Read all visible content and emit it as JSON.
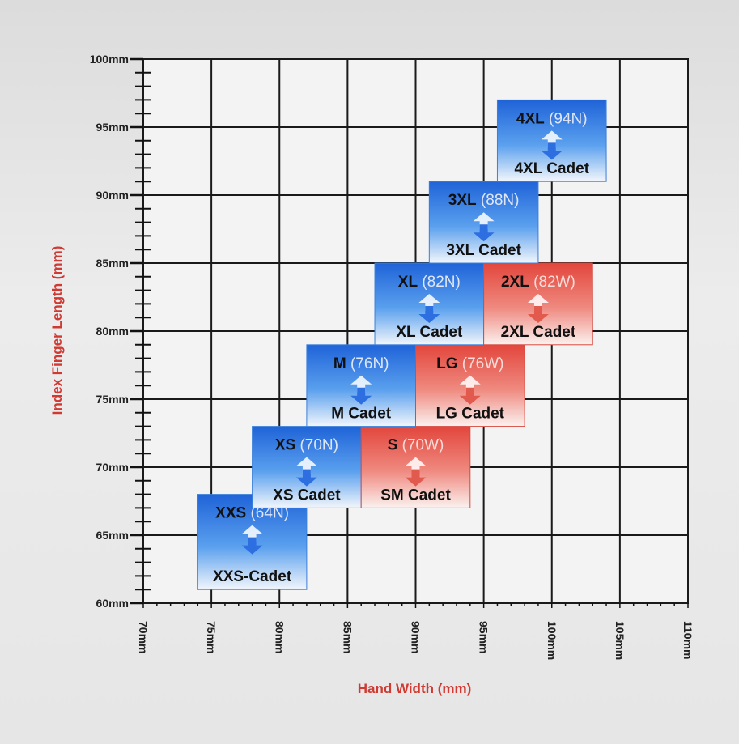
{
  "chart_data": {
    "type": "table",
    "xlabel": "Hand Width (mm)",
    "ylabel": "Index Finger Length (mm)",
    "xlim": [
      70,
      110
    ],
    "ylim": [
      60,
      100
    ],
    "x_ticks": [
      "70mm",
      "75mm",
      "80mm",
      "85mm",
      "90mm",
      "95mm",
      "100mm",
      "105mm",
      "110mm"
    ],
    "y_ticks": [
      "60mm",
      "65mm",
      "70mm",
      "75mm",
      "80mm",
      "85mm",
      "90mm",
      "95mm",
      "100mm"
    ],
    "grid": true,
    "cells": [
      {
        "size": "XXS",
        "code": "(64N)",
        "cadet": "XXS-Cadet",
        "fit": "narrow",
        "color": "#2f7fe0",
        "x": [
          74,
          82
        ],
        "y": [
          61,
          68
        ]
      },
      {
        "size": "XS",
        "code": "(70N)",
        "cadet": "XS Cadet",
        "fit": "narrow",
        "color": "#2f7fe0",
        "x": [
          78,
          86
        ],
        "y": [
          67,
          73
        ]
      },
      {
        "size": "S",
        "code": "(70W)",
        "cadet": "SM Cadet",
        "fit": "wide",
        "color": "#e4574c",
        "x": [
          86,
          94
        ],
        "y": [
          67,
          73
        ]
      },
      {
        "size": "M",
        "code": "(76N)",
        "cadet": "M Cadet",
        "fit": "narrow",
        "color": "#2f7fe0",
        "x": [
          82,
          90
        ],
        "y": [
          73,
          79
        ]
      },
      {
        "size": "LG",
        "code": "(76W)",
        "cadet": "LG Cadet",
        "fit": "wide",
        "color": "#e4574c",
        "x": [
          90,
          98
        ],
        "y": [
          73,
          79
        ]
      },
      {
        "size": "XL",
        "code": "(82N)",
        "cadet": "XL Cadet",
        "fit": "narrow",
        "color": "#2f7fe0",
        "x": [
          87,
          95
        ],
        "y": [
          79,
          85
        ]
      },
      {
        "size": "2XL",
        "code": "(82W)",
        "cadet": "2XL Cadet",
        "fit": "wide",
        "color": "#e4574c",
        "x": [
          95,
          103
        ],
        "y": [
          79,
          85
        ]
      },
      {
        "size": "3XL",
        "code": "(88N)",
        "cadet": "3XL Cadet",
        "fit": "narrow",
        "color": "#2f7fe0",
        "x": [
          91,
          99
        ],
        "y": [
          85,
          91
        ]
      },
      {
        "size": "4XL",
        "code": "(94N)",
        "cadet": "4XL Cadet",
        "fit": "narrow",
        "color": "#2f7fe0",
        "x": [
          96,
          104
        ],
        "y": [
          91,
          97
        ]
      }
    ]
  }
}
